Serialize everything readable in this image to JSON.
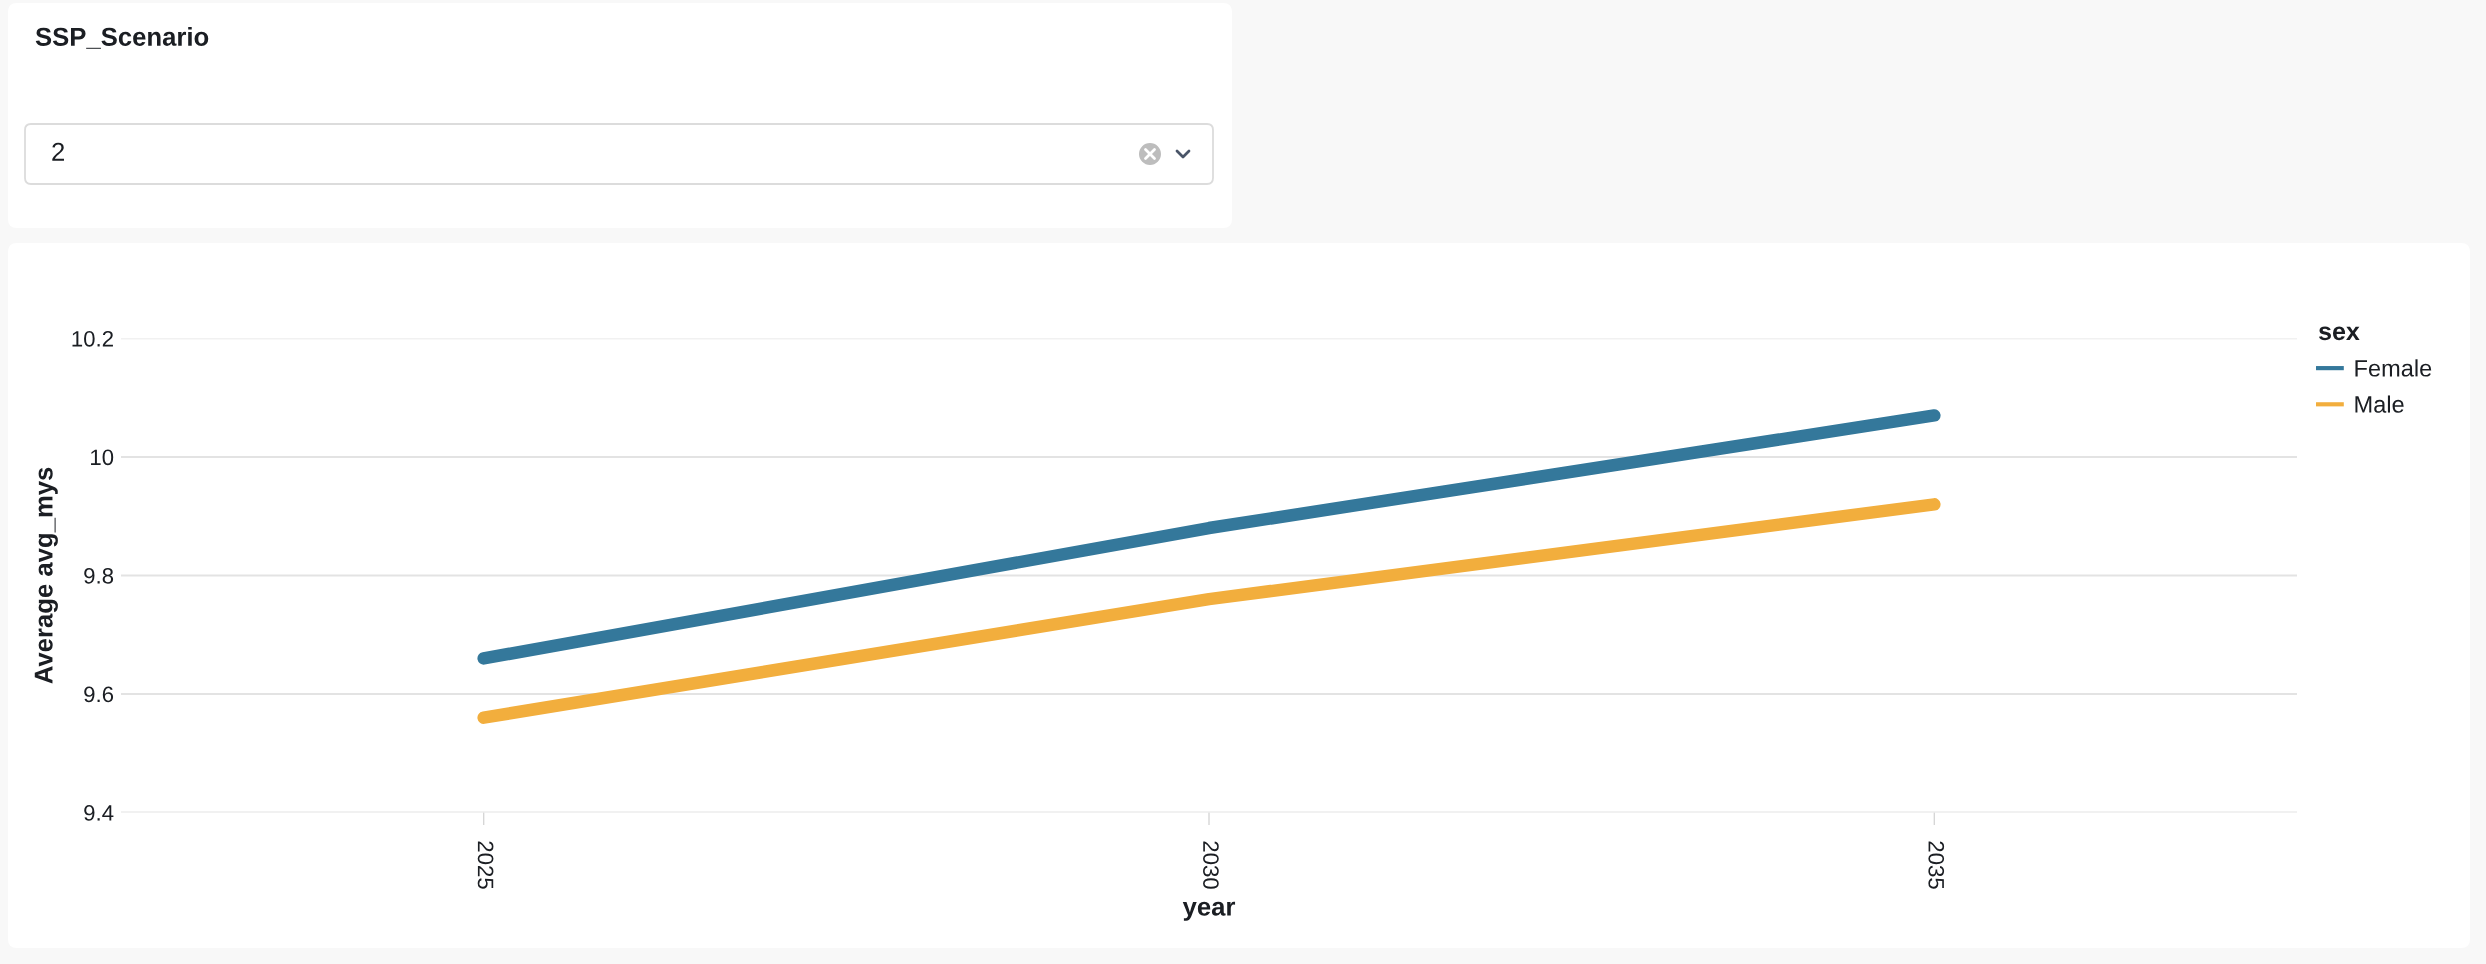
{
  "chart_data": [
    {
      "type": "other",
      "title": "SSP_Scenario",
      "annotations": [
        "2"
      ]
    },
    {
      "type": "line",
      "xlabel": "year",
      "ylabel": "Average avg_mys",
      "legend_title": "sex",
      "categories": [
        "2025",
        "2030",
        "2035"
      ],
      "series": [
        {
          "name": "Female",
          "color": "#34789b",
          "values": [
            9.66,
            9.88,
            10.07
          ]
        },
        {
          "name": "Male",
          "color": "#f2ae3d",
          "values": [
            9.56,
            9.76,
            9.92
          ]
        }
      ],
      "ylim": [
        9.4,
        10.2
      ],
      "yticks": [
        9.4,
        9.6,
        9.8,
        10,
        10.2
      ],
      "grid": "y",
      "legend": "top right"
    }
  ]
}
